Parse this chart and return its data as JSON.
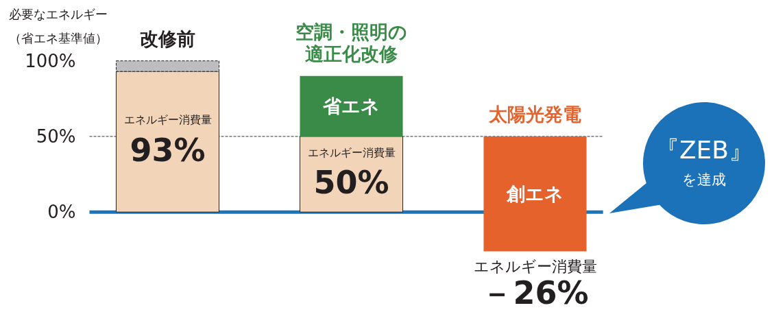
{
  "chart_data": {
    "type": "bar",
    "ylabel": "必要なエネルギー（省エネ基準値）",
    "categories": [
      "改修前",
      "空調・照明の適正化改修",
      "太陽光発電"
    ],
    "series": [
      {
        "name": "エネルギー消費量",
        "color": "#f2d5b9",
        "values": [
          93,
          50,
          null
        ],
        "base": [
          0,
          0,
          null
        ],
        "value_labels": [
          "93%",
          "50%",
          null
        ],
        "line_style": "solid"
      },
      {
        "color": "#bdbdc0",
        "values": [
          7,
          null,
          null
        ],
        "base": [
          93,
          null,
          null
        ],
        "line_style": "dashed"
      },
      {
        "name": "省エネ",
        "color": "#3a8a48",
        "values": [
          null,
          40,
          null
        ],
        "base": [
          null,
          50,
          null
        ]
      },
      {
        "name": "創エネ",
        "color": "#e5622c",
        "values": [
          null,
          null,
          76
        ],
        "base": [
          null,
          null,
          -26
        ]
      }
    ],
    "ylim": [
      -65,
      140
    ],
    "yticks": [
      {
        "value": 0,
        "label": "0%"
      },
      {
        "value": 50,
        "label": "50%"
      },
      {
        "value": 100,
        "label": "100%"
      }
    ],
    "ref_lines": [
      {
        "axis": "y",
        "value": 0,
        "color": "#1b75bb",
        "line_style": "solid"
      },
      {
        "axis": "y",
        "value": 50,
        "color": "#333333",
        "line_style": "dashed"
      }
    ],
    "annotations": [
      "『ZEB』を達成",
      {
        "text": "エネルギー消費量－26%",
        "x": "太陽光発電",
        "y": -26
      }
    ]
  }
}
